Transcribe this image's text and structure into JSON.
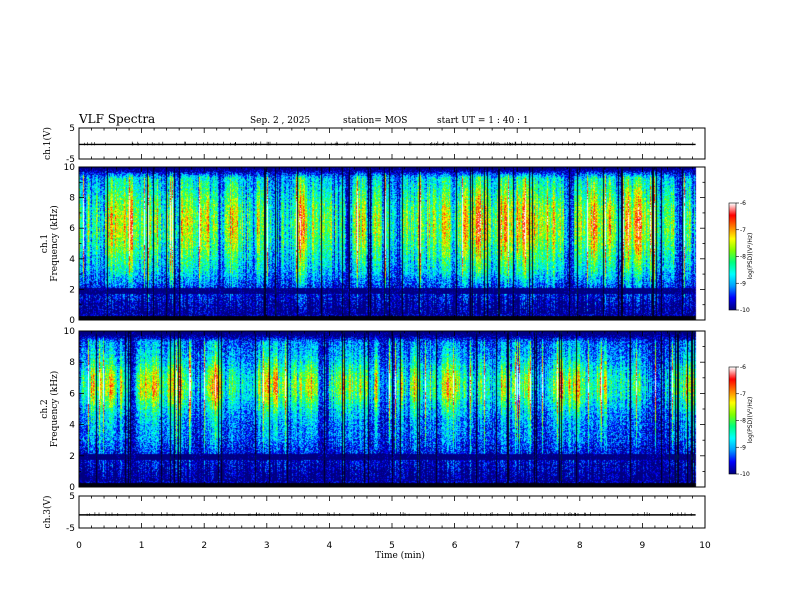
{
  "header": {
    "title": "VLF Spectra",
    "date": "Sep. 2 , 2025",
    "station": "station= MOS",
    "start": "start UT = 1 : 40 : 1"
  },
  "chart_data": [
    {
      "type": "line",
      "name": "ch1-voltage",
      "ylabel": "ch.1(V)",
      "ylim": [
        -5,
        5
      ],
      "yticks": [
        "5",
        "-5"
      ],
      "series": [
        {
          "name": "ch.1",
          "x": [
            0,
            9.85
          ],
          "values": [
            -0.3,
            -0.3
          ]
        }
      ]
    },
    {
      "type": "heatmap",
      "name": "ch1-spectrogram",
      "ylabel": "ch.1 Frequency (kHz)",
      "xlim": [
        0,
        9.85
      ],
      "ylim": [
        0,
        10
      ],
      "yticks": [
        "0",
        "2",
        "4",
        "6",
        "8",
        "10"
      ],
      "band_kHz": [
        1.7,
        2.1
      ],
      "bright_band_kHz": [
        3.5,
        9.0
      ],
      "colorbar": {
        "label": "log(PSD)(V²/Hz)",
        "range": [
          -10,
          -6
        ],
        "ticks": [
          "-6",
          "-7",
          "-8",
          "-9",
          "-10"
        ]
      }
    },
    {
      "type": "heatmap",
      "name": "ch2-spectrogram",
      "ylabel": "ch.2 Frequency (kHz)",
      "xlim": [
        0,
        9.85
      ],
      "ylim": [
        0,
        10
      ],
      "yticks": [
        "0",
        "2",
        "4",
        "6",
        "8",
        "10"
      ],
      "band_kHz": [
        1.7,
        2.1
      ],
      "bright_band_kHz": [
        5.0,
        8.0
      ],
      "colorbar": {
        "label": "log(PSD)(V²/Hz)",
        "range": [
          -10,
          -6
        ],
        "ticks": [
          "-6",
          "-7",
          "-8",
          "-9",
          "-10"
        ]
      }
    },
    {
      "type": "line",
      "name": "ch3-voltage",
      "ylabel": "ch.3(V)",
      "ylim": [
        -5,
        5
      ],
      "yticks": [
        "5",
        "-5"
      ],
      "series": [
        {
          "name": "ch.3",
          "x": [
            0,
            9.85
          ],
          "values": [
            -0.9,
            -0.9
          ]
        }
      ]
    }
  ],
  "xaxis": {
    "label": "Time (min)",
    "range": [
      0,
      10
    ],
    "ticks": [
      "0",
      "1",
      "2",
      "3",
      "4",
      "5",
      "6",
      "7",
      "8",
      "9",
      "10"
    ]
  },
  "colors": {
    "colormap": [
      "#000080",
      "#0000ff",
      "#00a0ff",
      "#00ffff",
      "#00ff80",
      "#80ff00",
      "#ffff00",
      "#ff8000",
      "#ff0000",
      "#ffffff"
    ]
  }
}
